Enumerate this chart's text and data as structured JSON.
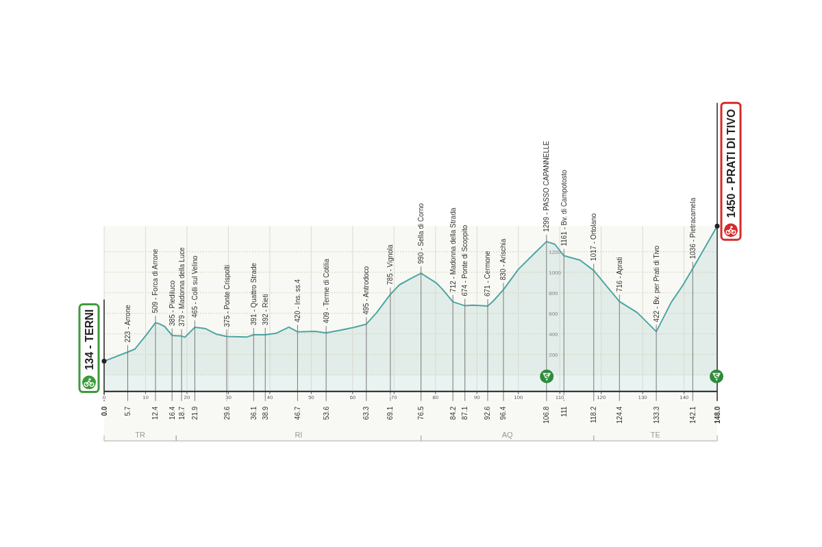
{
  "chart_data": {
    "type": "area",
    "x": [
      0,
      5.7,
      7.4,
      10.1,
      12.4,
      13.2,
      14.6,
      16.4,
      18.7,
      19.5,
      21.9,
      24.5,
      27.2,
      29.6,
      34.4,
      36.1,
      38.9,
      41.6,
      44.6,
      46.7,
      50.9,
      53.6,
      57.5,
      60.3,
      63.3,
      65.8,
      69.1,
      71.3,
      74.1,
      76.5,
      80.2,
      81.8,
      84.2,
      87.1,
      89,
      92.6,
      93.9,
      96.4,
      100,
      103.9,
      106.8,
      108.8,
      111,
      114.9,
      118.2,
      120.9,
      122.5,
      124.4,
      128.7,
      133.3,
      136.9,
      139.7,
      142.1,
      148
    ],
    "series": [
      {
        "color": "#4ba5a2",
        "values": [
          134,
          223,
          251,
          385,
          509,
          500,
          473,
          385,
          379,
          367,
          465,
          451,
          396,
          375,
          369,
          391,
          392,
          407,
          465,
          420,
          425,
          409,
          440,
          463,
          495,
          607,
          785,
          878,
          940,
          990,
          896,
          829,
          712,
          674,
          680,
          671,
          718,
          830,
          1029,
          1185,
          1299,
          1273,
          1161,
          1118,
          1017,
          885,
          807,
          716,
          607,
          422,
          707,
          873,
          1036,
          1450
        ]
      }
    ],
    "xlim": [
      0,
      148
    ],
    "ylim": [
      -160,
      1450
    ],
    "xticks": [
      0,
      10,
      20,
      30,
      40,
      50,
      60,
      70,
      80,
      90,
      100,
      110,
      120,
      130,
      140
    ],
    "x2lim": [
      0,
      148
    ],
    "x2ticks": [
      {
        "value": 0,
        "label": "0.0"
      },
      5.7,
      12.4,
      16.4,
      18.7,
      21.9,
      29.6,
      36.1,
      38.9,
      46.7,
      53.6,
      63.3,
      69.1,
      76.5,
      84.2,
      87.1,
      92.6,
      96.4,
      106.8,
      111.0,
      118.2,
      124.4,
      133.3,
      142.1,
      {
        "value": 148,
        "label": "148.0"
      }
    ],
    "yticks": [
      {
        "value": 0,
        "label": null
      },
      200,
      400,
      600,
      800,
      1000,
      1200
    ],
    "grid": true,
    "bands": [
      {
        "axis": "x",
        "from": 0,
        "to": 17.4,
        "label": "TR"
      },
      {
        "axis": "x",
        "from": 17.4,
        "to": 76.5,
        "label": "RI"
      },
      {
        "axis": "x",
        "from": 76.5,
        "to": 118.2,
        "label": "AQ"
      },
      {
        "axis": "x",
        "from": 118.2,
        "to": 148,
        "label": "TE"
      }
    ],
    "annotations": [
      {
        "text": "134 - TERNI",
        "x": 0,
        "y": 134
      },
      {
        "text": "223 - Arrone",
        "x": 5.7,
        "y": 223
      },
      {
        "text": "509 - Forca di Arrone",
        "x": 12.4,
        "y": 509
      },
      {
        "text": "385 - Piediluco",
        "x": 16.4,
        "y": 385
      },
      {
        "text": "379 - Madonna della Luce",
        "x": 18.7,
        "y": 379
      },
      {
        "text": "465 - Colli sul Velino",
        "x": 21.9,
        "y": 465
      },
      {
        "text": "375 - Ponte Crispolti",
        "x": 29.6,
        "y": 375
      },
      {
        "text": "391 - Quattro Strade",
        "x": 36.1,
        "y": 391
      },
      {
        "text": "392 - Rieti",
        "x": 38.9,
        "y": 392
      },
      {
        "text": "420 - Ins. ss.4",
        "x": 46.7,
        "y": 420
      },
      {
        "text": "409 - Terme di Cotilia",
        "x": 53.6,
        "y": 409
      },
      {
        "text": "495 - Antrodoco",
        "x": 63.3,
        "y": 495
      },
      {
        "text": "785 - Vignola",
        "x": 69.1,
        "y": 785
      },
      {
        "text": "990 - Sella di Corno",
        "x": 76.5,
        "y": 990
      },
      {
        "text": "712 - Madonna della Strada",
        "x": 84.2,
        "y": 712
      },
      {
        "text": "674 - Ponte di Scoppito",
        "x": 87.1,
        "y": 674
      },
      {
        "text": "671 - Cermone",
        "x": 92.6,
        "y": 671
      },
      {
        "text": "830 - Arischia",
        "x": 96.4,
        "y": 830
      },
      {
        "text": "1299 - PASSO CAPANNELLE",
        "x": 106.8,
        "y": 1299
      },
      {
        "text": "1161 - Bv. di Campotosto",
        "x": 111,
        "y": 1161
      },
      {
        "text": "1017 - Ortolano",
        "x": 118.2,
        "y": 1017
      },
      {
        "text": "716 - Aprati",
        "x": 124.4,
        "y": 716
      },
      {
        "text": "422 - Bv. per Prati di Tivo",
        "x": 133.3,
        "y": 422
      },
      {
        "text": "1036 - Pietracamela",
        "x": 142.1,
        "y": 1036
      },
      {
        "text": "1450 - PRATI DI TIVO",
        "x": 148,
        "y": 1450
      }
    ]
  }
}
